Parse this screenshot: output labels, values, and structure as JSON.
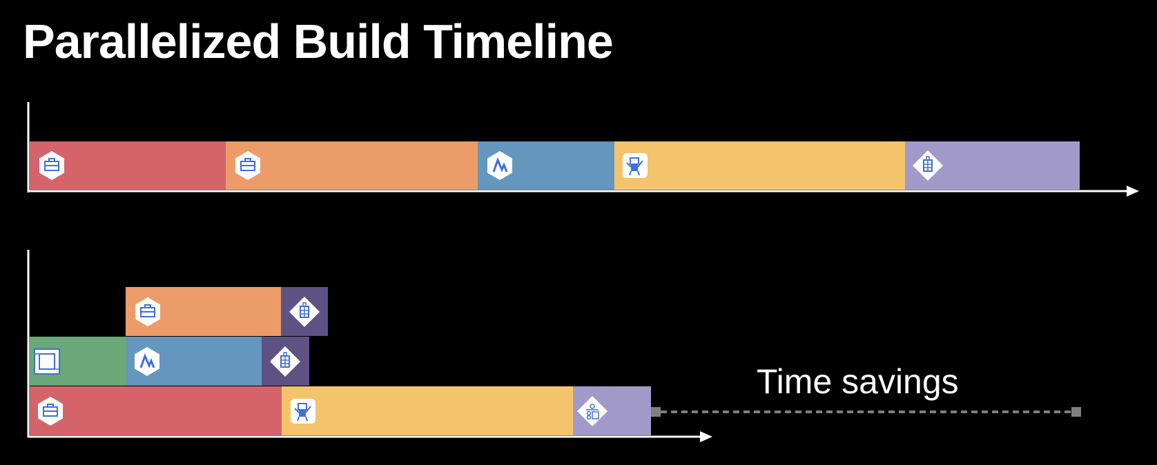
{
  "title": "Parallelized Build Timeline",
  "time_savings_label": "Time savings",
  "colors": {
    "red": "#D4646A",
    "orange": "#EC9C68",
    "blue": "#6496BE",
    "yellow": "#F4C46C",
    "lavender": "#A19AC9",
    "dark_purple": "#5E5284",
    "green": "#6AA878",
    "icon_blue": "#3F6FD8"
  },
  "serial_timeline": [
    {
      "color": "red",
      "icon": "briefcase-icon"
    },
    {
      "color": "orange",
      "icon": "briefcase-icon"
    },
    {
      "color": "blue",
      "icon": "swift-icon"
    },
    {
      "color": "yellow",
      "icon": "robot-icon"
    },
    {
      "color": "lavender",
      "icon": "building-icon"
    }
  ],
  "parallel_timeline": [
    {
      "color": "orange",
      "icon": "briefcase-icon"
    },
    {
      "color": "dark_purple",
      "icon": "building-icon"
    },
    {
      "color": "green",
      "icon": "framework-icon"
    },
    {
      "color": "blue",
      "icon": "swift-icon"
    },
    {
      "color": "dark_purple",
      "icon": "building-icon"
    },
    {
      "color": "red",
      "icon": "briefcase-icon"
    },
    {
      "color": "yellow",
      "icon": "robot-icon"
    },
    {
      "color": "lavender",
      "icon": "app-icon"
    }
  ]
}
